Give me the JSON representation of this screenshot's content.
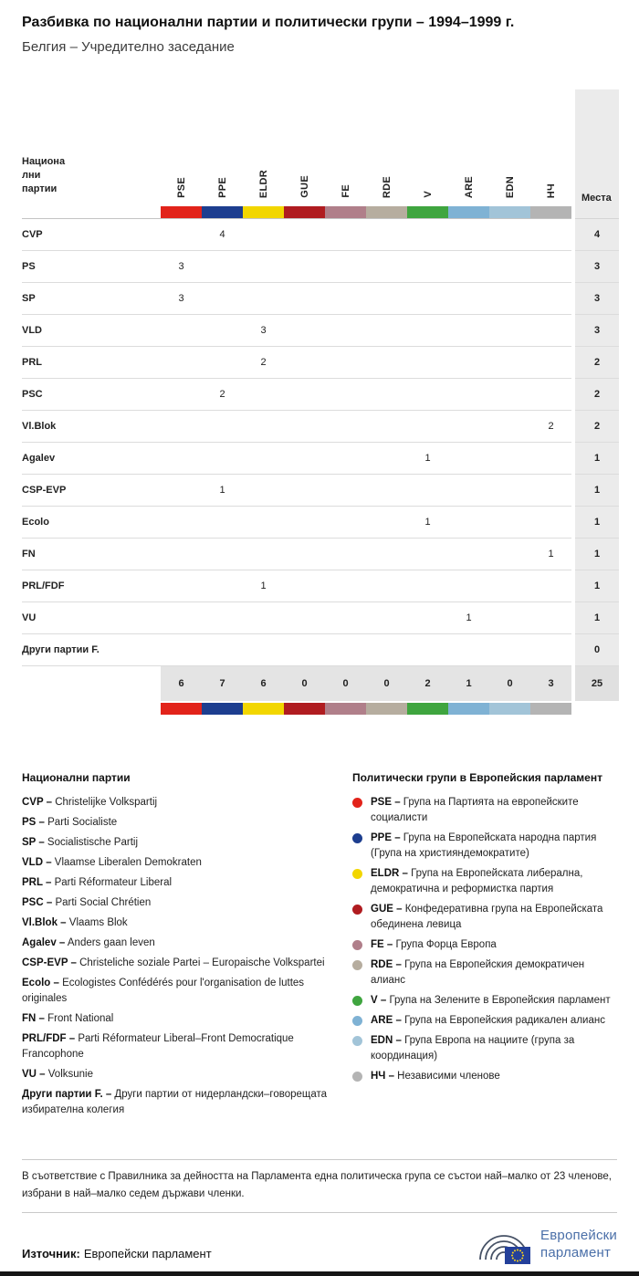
{
  "title": "Разбивка по национални партии и политически групи – 1994–1999 г.",
  "subtitle": "Белгия – Учредително заседание",
  "chart_data": {
    "type": "table",
    "row_header": "Национа\nлни\nпартии",
    "seats_header": "Места",
    "groups": [
      {
        "code": "PSE",
        "color": "#e2231a"
      },
      {
        "code": "PPE",
        "color": "#1d3e8f"
      },
      {
        "code": "ELDR",
        "color": "#f2d600"
      },
      {
        "code": "GUE",
        "color": "#b01c20"
      },
      {
        "code": "FE",
        "color": "#b07f8a"
      },
      {
        "code": "RDE",
        "color": "#b6ad9f"
      },
      {
        "code": "V",
        "color": "#3fa53f"
      },
      {
        "code": "ARE",
        "color": "#7fb2d4"
      },
      {
        "code": "EDN",
        "color": "#a2c4d8"
      },
      {
        "code": "НЧ",
        "color": "#b4b4b4"
      }
    ],
    "rows": [
      {
        "party": "CVP",
        "values": [
          "",
          4,
          "",
          "",
          "",
          "",
          "",
          "",
          "",
          ""
        ],
        "seats": 4
      },
      {
        "party": "PS",
        "values": [
          3,
          "",
          "",
          "",
          "",
          "",
          "",
          "",
          "",
          ""
        ],
        "seats": 3
      },
      {
        "party": "SP",
        "values": [
          3,
          "",
          "",
          "",
          "",
          "",
          "",
          "",
          "",
          ""
        ],
        "seats": 3
      },
      {
        "party": "VLD",
        "values": [
          "",
          "",
          3,
          "",
          "",
          "",
          "",
          "",
          "",
          ""
        ],
        "seats": 3
      },
      {
        "party": "PRL",
        "values": [
          "",
          "",
          2,
          "",
          "",
          "",
          "",
          "",
          "",
          ""
        ],
        "seats": 2
      },
      {
        "party": "PSC",
        "values": [
          "",
          2,
          "",
          "",
          "",
          "",
          "",
          "",
          "",
          ""
        ],
        "seats": 2
      },
      {
        "party": "Vl.Blok",
        "values": [
          "",
          "",
          "",
          "",
          "",
          "",
          "",
          "",
          "",
          2
        ],
        "seats": 2
      },
      {
        "party": "Agalev",
        "values": [
          "",
          "",
          "",
          "",
          "",
          "",
          1,
          "",
          "",
          ""
        ],
        "seats": 1
      },
      {
        "party": "CSP-EVP",
        "values": [
          "",
          1,
          "",
          "",
          "",
          "",
          "",
          "",
          "",
          ""
        ],
        "seats": 1
      },
      {
        "party": "Ecolo",
        "values": [
          "",
          "",
          "",
          "",
          "",
          "",
          1,
          "",
          "",
          ""
        ],
        "seats": 1
      },
      {
        "party": "FN",
        "values": [
          "",
          "",
          "",
          "",
          "",
          "",
          "",
          "",
          "",
          1
        ],
        "seats": 1
      },
      {
        "party": "PRL/FDF",
        "values": [
          "",
          "",
          1,
          "",
          "",
          "",
          "",
          "",
          "",
          ""
        ],
        "seats": 1
      },
      {
        "party": "VU",
        "values": [
          "",
          "",
          "",
          "",
          "",
          "",
          "",
          1,
          "",
          ""
        ],
        "seats": 1
      },
      {
        "party": "Други партии F.",
        "values": [
          "",
          "",
          "",
          "",
          "",
          "",
          "",
          "",
          "",
          ""
        ],
        "seats": 0
      }
    ],
    "totals": {
      "values": [
        6,
        7,
        6,
        0,
        0,
        0,
        2,
        1,
        0,
        3
      ],
      "seats": 25
    }
  },
  "legend_parties": {
    "heading": "Национални партии",
    "items": [
      {
        "abbr": "CVP –",
        "name": "Christelijke Volkspartij"
      },
      {
        "abbr": "PS –",
        "name": "Parti Socialiste"
      },
      {
        "abbr": "SP –",
        "name": "Socialistische Partij"
      },
      {
        "abbr": "VLD –",
        "name": "Vlaamse Liberalen Demokraten"
      },
      {
        "abbr": "PRL –",
        "name": "Parti Réformateur Liberal"
      },
      {
        "abbr": "PSC –",
        "name": "Parti Social Chrétien"
      },
      {
        "abbr": "Vl.Blok –",
        "name": "Vlaams Blok"
      },
      {
        "abbr": "Agalev –",
        "name": "Anders gaan leven"
      },
      {
        "abbr": "CSP-EVP –",
        "name": "Christeliche soziale Partei – Europaische Volkspartei"
      },
      {
        "abbr": "Ecolo –",
        "name": "Ecologistes Confédérés pour l'organisation de luttes originales"
      },
      {
        "abbr": "FN –",
        "name": "Front National"
      },
      {
        "abbr": "PRL/FDF –",
        "name": "Parti Réformateur Liberal–Front Democratique Francophone"
      },
      {
        "abbr": "VU –",
        "name": "Volksunie"
      },
      {
        "abbr": "Други партии F. –",
        "name": "Други партии от нидерландски–говорещата избирателна колегия"
      }
    ]
  },
  "legend_groups": {
    "heading": "Политически групи в Европейския парламент",
    "items": [
      {
        "abbr": "PSE –",
        "color": "#e2231a",
        "name": "Група на Партията на европейските социалисти"
      },
      {
        "abbr": "PPE –",
        "color": "#1d3e8f",
        "name": "Група на Европейската народна партия (Група на християндемократите)"
      },
      {
        "abbr": "ELDR –",
        "color": "#f2d600",
        "name": "Група на Европейската либерална, демократична и реформистка партия"
      },
      {
        "abbr": "GUE –",
        "color": "#b01c20",
        "name": "Конфедеративна група на Европейската обединена левица"
      },
      {
        "abbr": "FE –",
        "color": "#b07f8a",
        "name": "Група Форца Европа"
      },
      {
        "abbr": "RDE –",
        "color": "#b6ad9f",
        "name": "Група на Европейския демократичен алианс"
      },
      {
        "abbr": "V –",
        "color": "#3fa53f",
        "name": "Група на Зелените в Европейския парламент"
      },
      {
        "abbr": "ARE –",
        "color": "#7fb2d4",
        "name": "Група на Европейския радикален алианс"
      },
      {
        "abbr": "EDN –",
        "color": "#a2c4d8",
        "name": "Група Европа на нациите (група за координация)"
      },
      {
        "abbr": "НЧ –",
        "color": "#b4b4b4",
        "name": "Независими членове"
      }
    ]
  },
  "footer": {
    "note": "В съответствие с Правилника за дейността на Парламента една политическа група се състои най–малко от 23 членове, избрани в най–малко седем държави членки.",
    "source_label": "Източник:",
    "source_value": "Европейски парламент",
    "logo_line1": "Европейски",
    "logo_line2": "парламент"
  }
}
